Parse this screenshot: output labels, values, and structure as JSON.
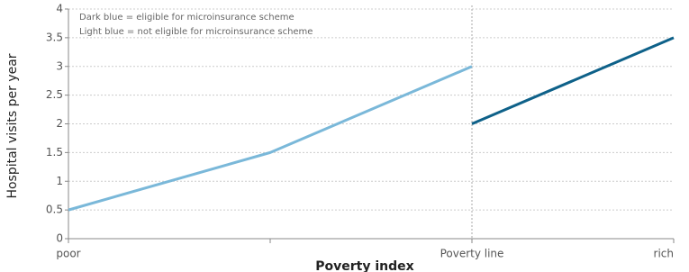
{
  "chart_data": {
    "type": "line",
    "y_label": "Hospital visits per year",
    "x_label": "Poverty index",
    "annotations": [
      "Dark blue = eligible for microinsurance scheme",
      "Light blue = not eligible for microinsurance scheme"
    ],
    "categories": [
      "poor",
      null,
      "Poverty line",
      "rich"
    ],
    "series": [
      {
        "color": "#7ab8d9",
        "values": [
          0.5,
          1.5,
          3,
          null
        ]
      },
      {
        "color": "#0e6189",
        "values": [
          null,
          null,
          2,
          3.5
        ]
      }
    ],
    "reference_category": 2,
    "ylim": [
      0,
      4
    ],
    "yticks": [
      0,
      0.5,
      1,
      1.5,
      2,
      2.5,
      3,
      3.5,
      4
    ],
    "grid": true
  }
}
